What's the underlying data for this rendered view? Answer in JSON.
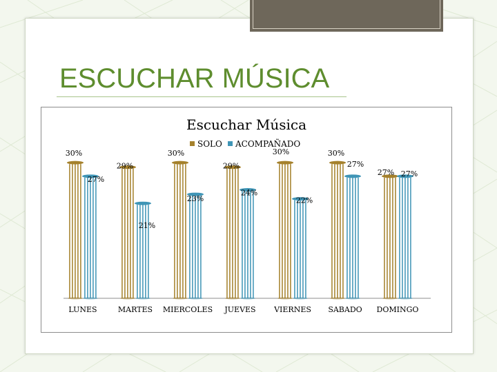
{
  "slide": {
    "title": "ESCUCHAR MÚSICA"
  },
  "colors": {
    "accent_green": "#5e8d2e",
    "solo": "#a5812c",
    "acompanado": "#3f95b6"
  },
  "chart_data": {
    "type": "bar",
    "title": "Escuchar Música",
    "legend_position": "top",
    "categories": [
      "LUNES",
      "MARTES",
      "MIERCOLES",
      "JUEVES",
      "VIERNES",
      "SABADO",
      "DOMINGO"
    ],
    "series": [
      {
        "name": "SOLO",
        "values": [
          30,
          29,
          30,
          29,
          30,
          30,
          27
        ],
        "labels": [
          "30%",
          "29%",
          "30%",
          "29%",
          "30%",
          "30%",
          "27%"
        ],
        "color": "#a5812c"
      },
      {
        "name": "ACOMPAÑADO",
        "values": [
          27,
          21,
          23,
          24,
          22,
          27,
          27
        ],
        "labels": [
          "27%",
          "21%",
          "23%",
          "24%",
          "22%",
          "27%",
          "27%"
        ],
        "color": "#3f95b6"
      }
    ],
    "ylim": [
      0,
      32
    ],
    "grid": false,
    "xlabel": "",
    "ylabel": ""
  }
}
